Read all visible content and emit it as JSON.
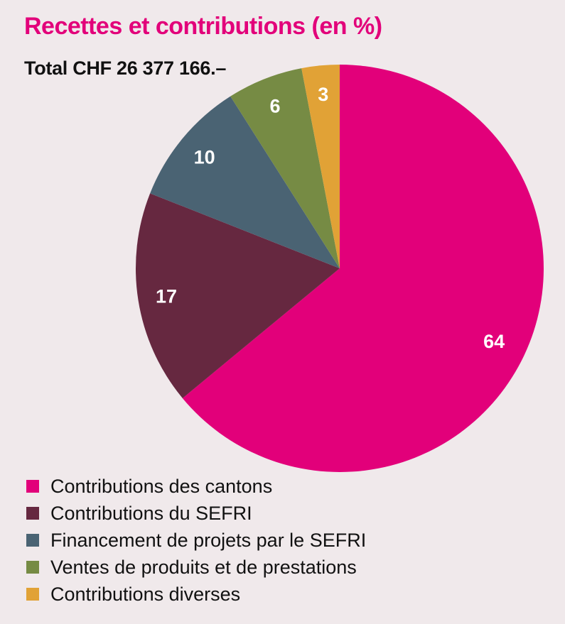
{
  "chart_data": {
    "type": "pie",
    "title": "Recettes et contributions (en %)",
    "subtitle": "Total CHF 26 377 166.–",
    "legend_position": "bottom-left",
    "slices": [
      {
        "label": "Contributions des cantons",
        "value": 64,
        "color": "#E2007A"
      },
      {
        "label": "Contributions du SEFRI",
        "value": 17,
        "color": "#662840"
      },
      {
        "label": "Financement de projets par le SEFRI",
        "value": 10,
        "color": "#4A6373"
      },
      {
        "label": "Ventes de produits et de prestations",
        "value": 6,
        "color": "#768B44"
      },
      {
        "label": "Contributions diverses",
        "value": 3,
        "color": "#E1A236"
      }
    ]
  }
}
